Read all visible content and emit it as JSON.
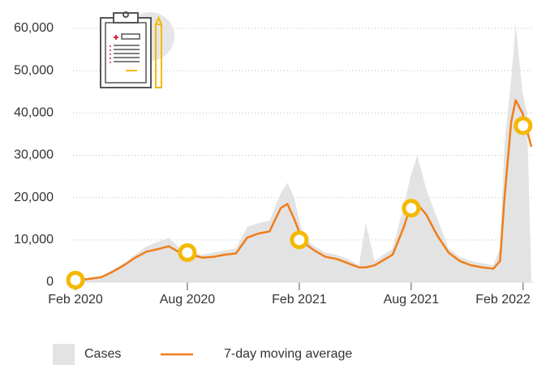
{
  "chart_data": {
    "type": "area-line",
    "xticks": [
      {
        "value": 2020.083,
        "label": "Feb 2020"
      },
      {
        "value": 2020.583,
        "label": "Aug 2020"
      },
      {
        "value": 2021.083,
        "label": "Feb 2021"
      },
      {
        "value": 2021.583,
        "label": "Aug 2021"
      },
      {
        "value": 2022.083,
        "label": "Feb 2022"
      }
    ],
    "xlim": [
      2020.083,
      2022.12
    ],
    "ylim": [
      0,
      60000
    ],
    "yticks": [
      0,
      {
        "value": 10000,
        "label": "10,000"
      },
      {
        "value": 20000,
        "label": "20,000"
      },
      {
        "value": 30000,
        "label": "30,000"
      },
      {
        "value": 40000,
        "label": "40,000"
      },
      {
        "value": 50000,
        "label": "50,000"
      },
      {
        "value": 60000,
        "label": "60,000"
      }
    ],
    "grid": true,
    "x": [
      2020.083,
      2020.13,
      2020.2,
      2020.25,
      2020.3,
      2020.35,
      2020.4,
      2020.45,
      2020.5,
      2020.55,
      2020.6,
      2020.65,
      2020.7,
      2020.75,
      2020.8,
      2020.85,
      2020.9,
      2020.95,
      2021.0,
      2021.03,
      2021.06,
      2021.1,
      2021.15,
      2021.2,
      2021.25,
      2021.3,
      2021.35,
      2021.38,
      2021.42,
      2021.5,
      2021.55,
      2021.58,
      2021.61,
      2021.65,
      2021.7,
      2021.75,
      2021.8,
      2021.85,
      2021.9,
      2021.95,
      2021.98,
      2022.0,
      2022.03,
      2022.05,
      2022.08,
      2022.1,
      2022.12
    ],
    "series": [
      {
        "name": "Cases",
        "color": "#e3e3e3",
        "kind": "area",
        "values": [
          500,
          800,
          1500,
          3000,
          4500,
          6500,
          8500,
          9500,
          10500,
          8000,
          7000,
          6500,
          7000,
          7500,
          8000,
          13000,
          14000,
          14500,
          21000,
          23500,
          20000,
          11000,
          8500,
          7000,
          6500,
          5500,
          4000,
          14000,
          5000,
          8000,
          18000,
          25000,
          30000,
          22000,
          15000,
          8000,
          6000,
          5000,
          4500,
          4000,
          8000,
          33000,
          48000,
          61000,
          45000,
          40000,
          0
        ]
      },
      {
        "name": "7-day moving average",
        "color": "#f07d1a",
        "kind": "line",
        "values": [
          500,
          700,
          1200,
          2500,
          4000,
          5800,
          7200,
          7800,
          8500,
          7000,
          6500,
          5800,
          6000,
          6500,
          6800,
          10500,
          11500,
          12000,
          17500,
          18500,
          15000,
          9500,
          7500,
          6000,
          5500,
          4500,
          3500,
          3500,
          4000,
          6500,
          13000,
          18000,
          18500,
          16000,
          11000,
          7000,
          5000,
          4000,
          3500,
          3200,
          5000,
          20000,
          38000,
          43000,
          40000,
          36000,
          32000
        ]
      }
    ],
    "markers": {
      "color": "#f5b800",
      "x": [
        2020.083,
        2020.583,
        2021.083,
        2021.583,
        2022.083
      ],
      "values": [
        500,
        7000,
        10000,
        17500,
        37000
      ]
    }
  }
}
